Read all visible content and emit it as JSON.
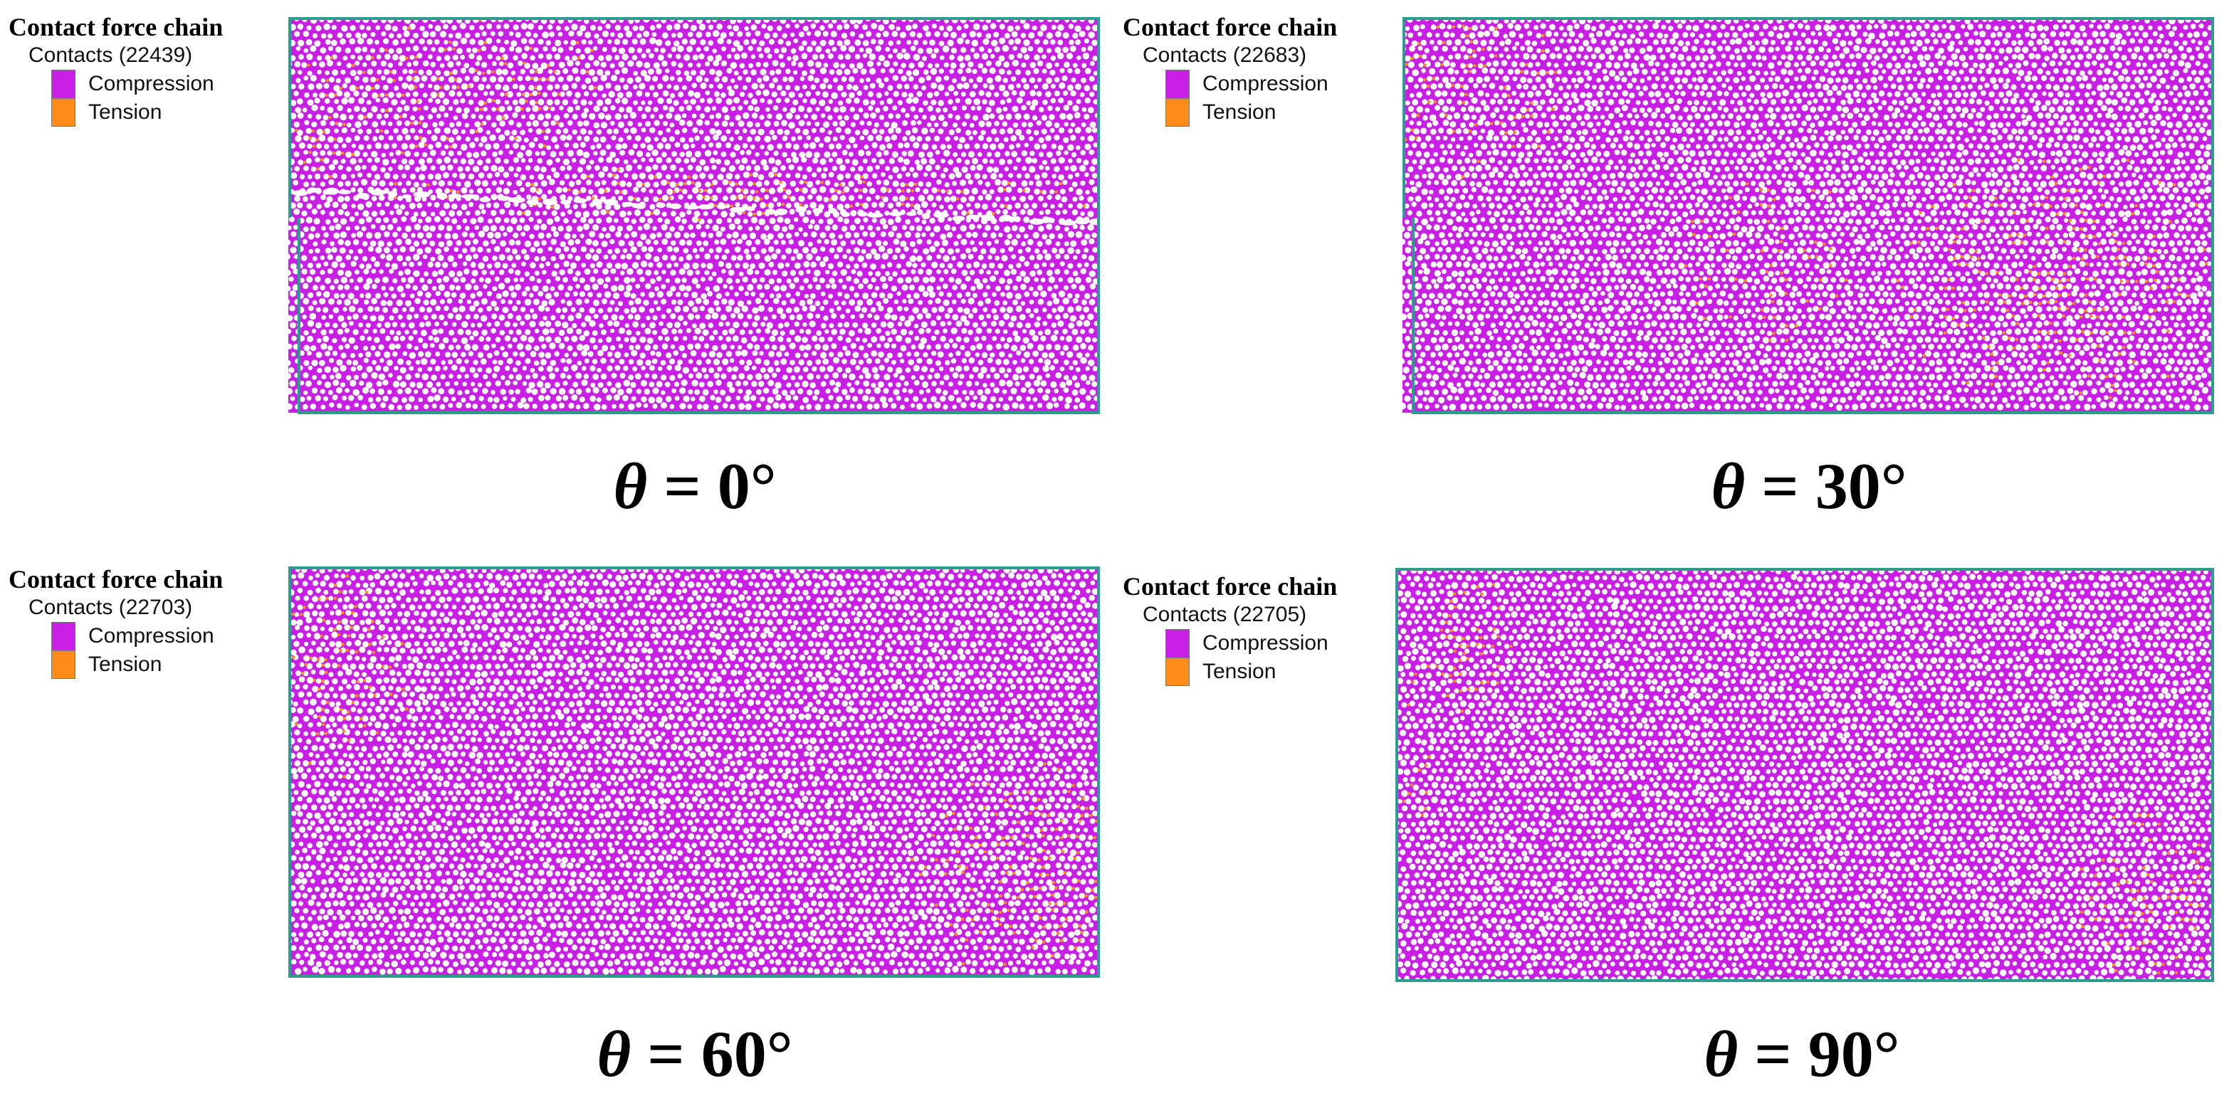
{
  "colors": {
    "compression": "#c81ee6",
    "tension": "#ff8c1a",
    "particle": "#ffffff",
    "frame": "#2a9d8f"
  },
  "panels": [
    {
      "legend": {
        "title": "Contact force chain",
        "contacts_label": "Contacts (22439)",
        "items": [
          {
            "label": "Compression",
            "color": "#c81ee6"
          },
          {
            "label": "Tension",
            "color": "#ff8c1a"
          }
        ]
      },
      "caption": {
        "symbol": "θ",
        "value": " = 0°"
      }
    },
    {
      "legend": {
        "title": "Contact force chain",
        "contacts_label": "Contacts (22683)",
        "items": [
          {
            "label": "Compression",
            "color": "#c81ee6"
          },
          {
            "label": "Tension",
            "color": "#ff8c1a"
          }
        ]
      },
      "caption": {
        "symbol": "θ",
        "value": " = 30°"
      }
    },
    {
      "legend": {
        "title": "Contact force chain",
        "contacts_label": "Contacts (22703)",
        "items": [
          {
            "label": "Compression",
            "color": "#c81ee6"
          },
          {
            "label": "Tension",
            "color": "#ff8c1a"
          }
        ]
      },
      "caption": {
        "symbol": "θ",
        "value": " = 60°"
      }
    },
    {
      "legend": {
        "title": "Contact force chain",
        "contacts_label": "Contacts (22705)",
        "items": [
          {
            "label": "Compression",
            "color": "#c81ee6"
          },
          {
            "label": "Tension",
            "color": "#ff8c1a"
          }
        ]
      },
      "caption": {
        "symbol": "θ",
        "value": " = 90°"
      }
    }
  ]
}
